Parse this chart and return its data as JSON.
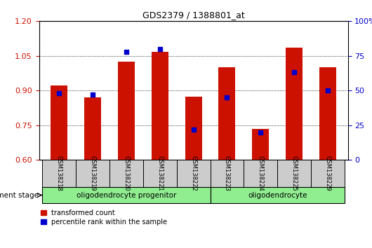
{
  "title": "GDS2379 / 1388801_at",
  "categories": [
    "GSM138218",
    "GSM138219",
    "GSM138220",
    "GSM138221",
    "GSM138222",
    "GSM138223",
    "GSM138224",
    "GSM138225",
    "GSM138229"
  ],
  "red_values": [
    0.921,
    0.87,
    1.025,
    1.068,
    0.873,
    1.0,
    0.734,
    1.085,
    1.0
  ],
  "blue_values": [
    48,
    47,
    78,
    80,
    22,
    45,
    20,
    63,
    50
  ],
  "ylim_left": [
    0.6,
    1.2
  ],
  "ylim_right": [
    0,
    100
  ],
  "yticks_left": [
    0.6,
    0.75,
    0.9,
    1.05,
    1.2
  ],
  "yticks_right": [
    0,
    25,
    50,
    75,
    100
  ],
  "bar_color": "#CC1100",
  "dot_color": "#0000CC",
  "bar_width": 0.5,
  "grid_color": "black",
  "group_progenitor": {
    "label": "oligodendrocyte progenitor",
    "start": 0,
    "end": 4,
    "color": "#90EE90"
  },
  "group_oligo": {
    "label": "oligodendrocyte",
    "start": 5,
    "end": 8,
    "color": "#90EE90"
  },
  "stage_label": "development stage",
  "legend_red": "transformed count",
  "legend_blue": "percentile rank within the sample",
  "background_plot": "#FFFFFF",
  "tick_area_color": "#CCCCCC"
}
